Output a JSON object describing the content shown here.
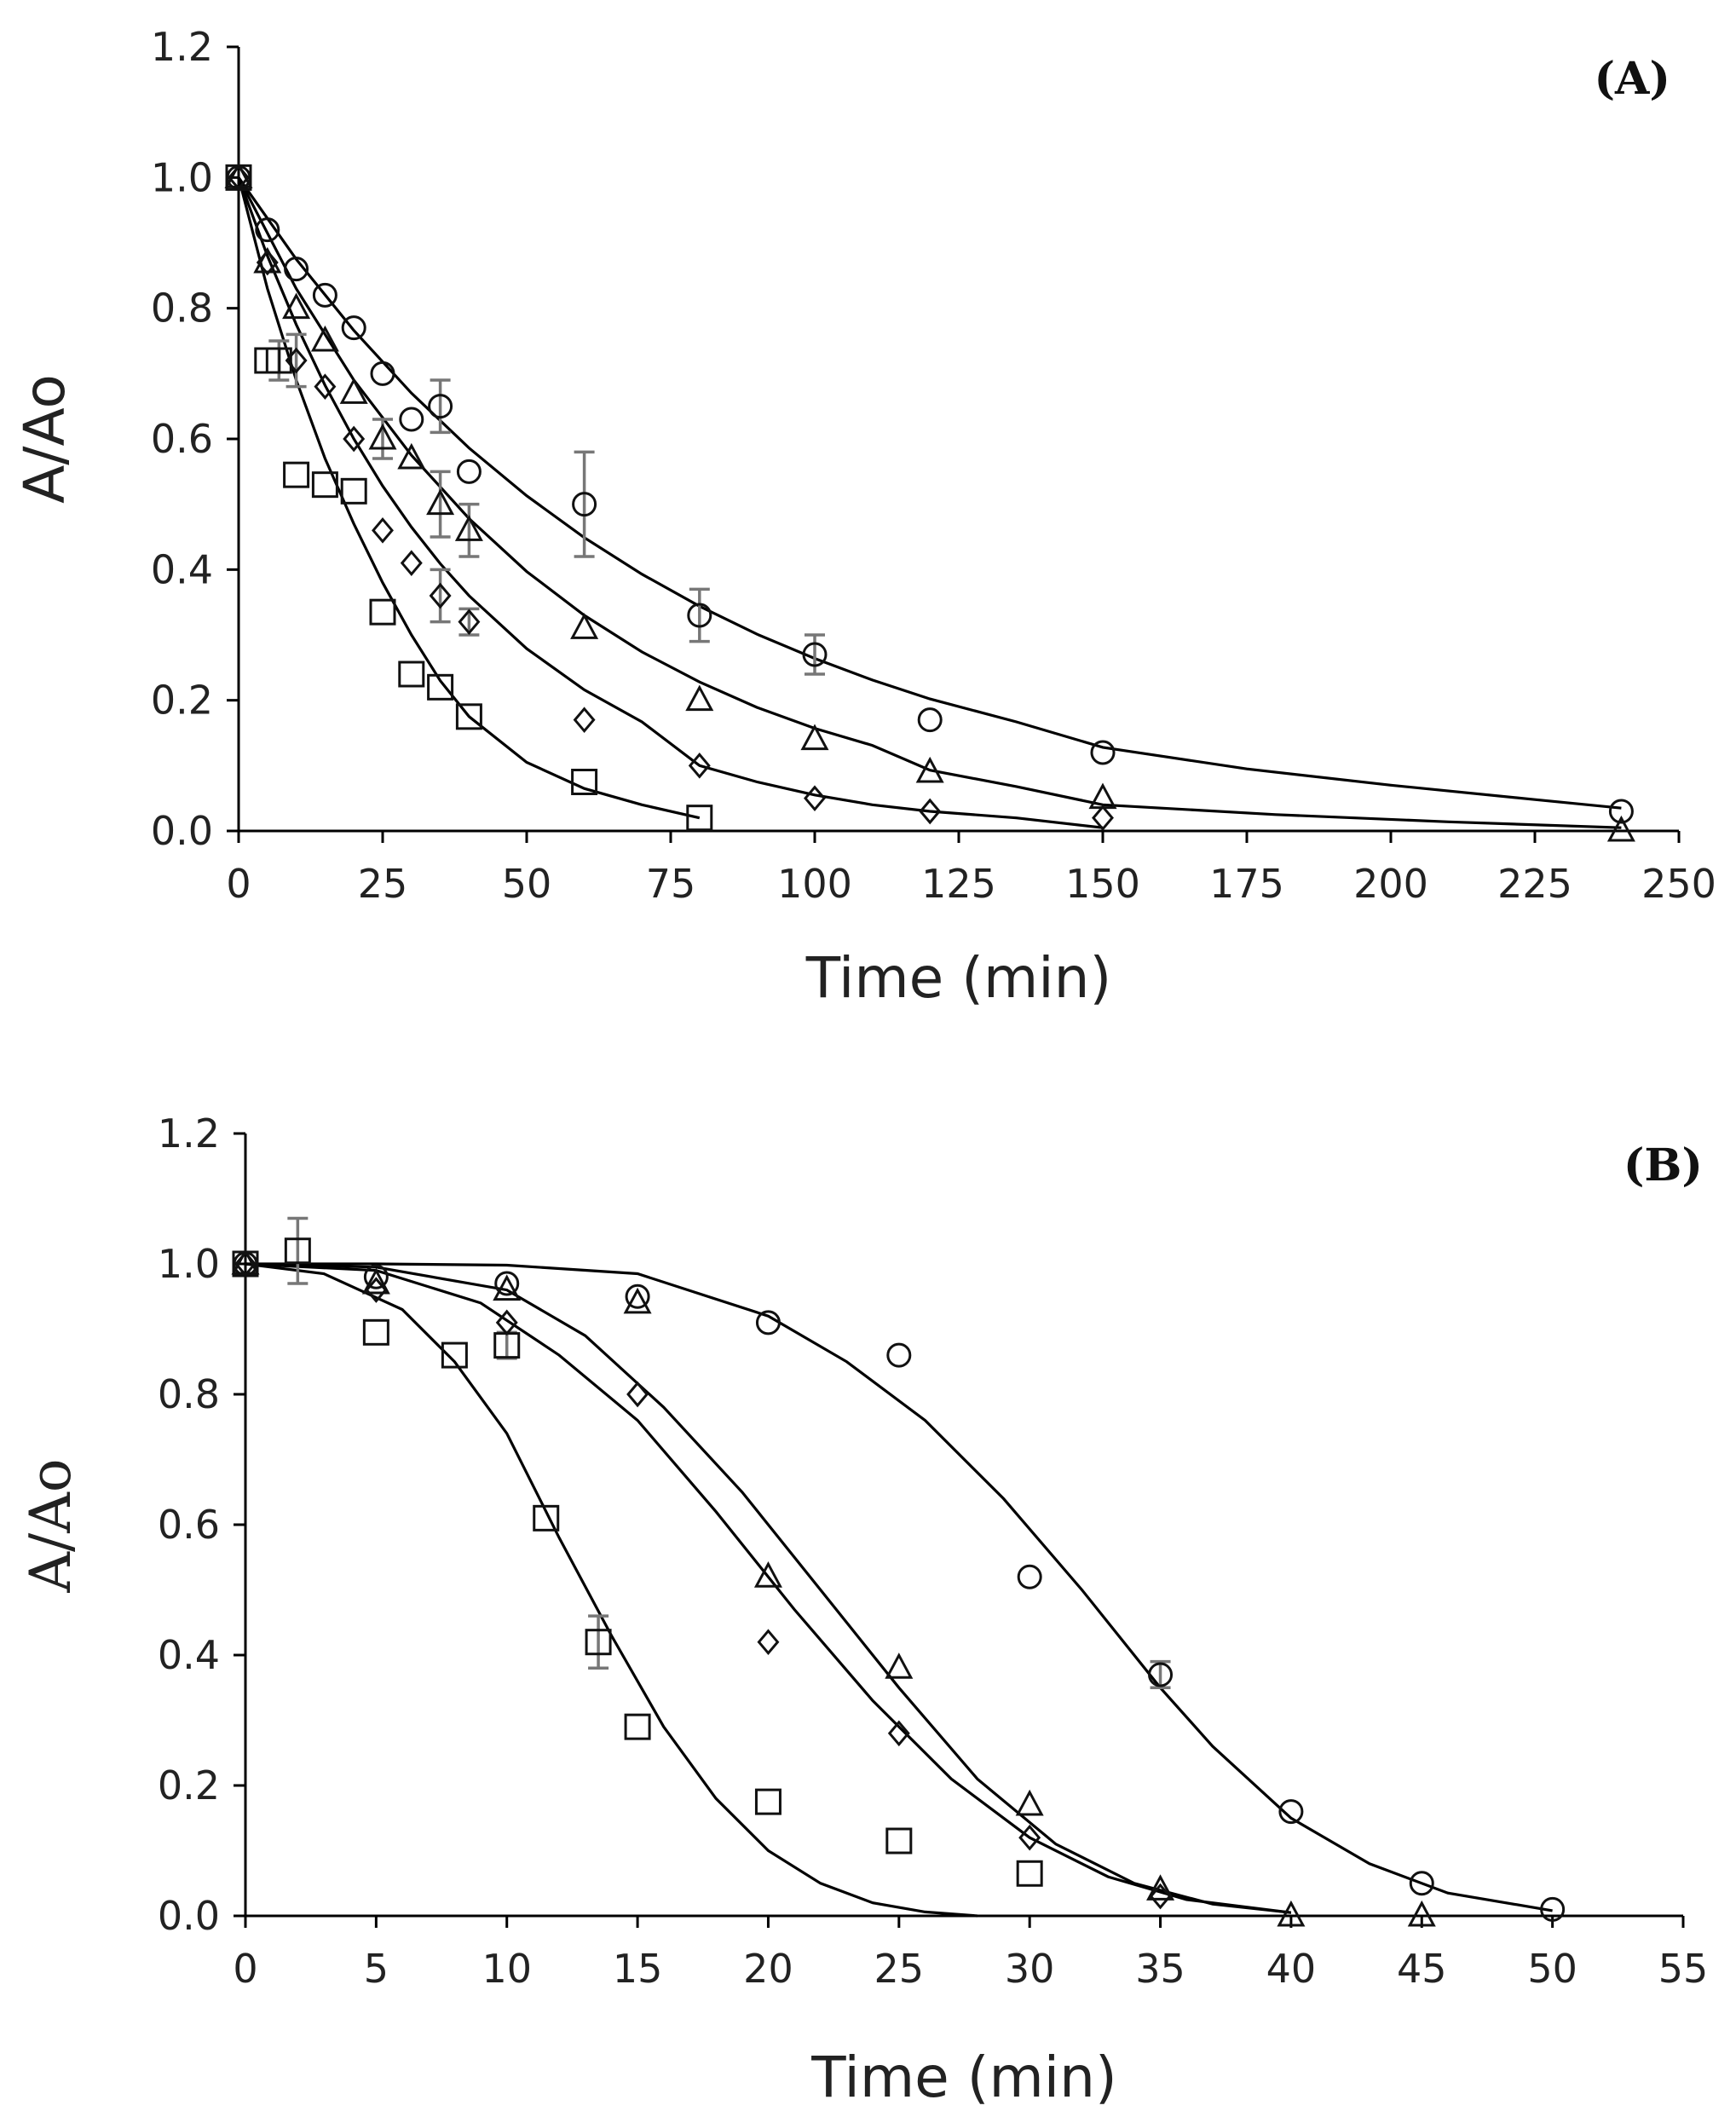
{
  "chart_data": [
    {
      "type": "scatter",
      "panel_label": "(A)",
      "xlabel": "Time (min)",
      "ylabel": "A/Ao",
      "xlim": [
        0,
        250
      ],
      "ylim": [
        0,
        1.2
      ],
      "x_ticks": [
        "0",
        "25",
        "50",
        "75",
        "100",
        "125",
        "150",
        "175",
        "200",
        "225",
        "250"
      ],
      "y_ticks": [
        "0.0",
        "0.2",
        "0.4",
        "0.6",
        "0.8",
        "1.0",
        "1.2"
      ],
      "grid": false,
      "series": [
        {
          "name": "circle",
          "marker": "circle",
          "x": [
            0,
            5,
            10,
            15,
            20,
            25,
            30,
            35,
            40,
            60,
            80,
            100,
            120,
            150,
            240
          ],
          "y": [
            1.0,
            0.92,
            0.86,
            0.82,
            0.77,
            0.7,
            0.63,
            0.65,
            0.55,
            0.5,
            0.33,
            0.27,
            0.17,
            0.12,
            0.03
          ],
          "err": [
            0,
            0,
            0,
            0,
            0,
            0,
            0,
            0.04,
            0,
            0.08,
            0.04,
            0.03,
            0,
            0,
            0
          ],
          "fit": [
            [
              0,
              1.0
            ],
            [
              10,
              0.875
            ],
            [
              20,
              0.766
            ],
            [
              30,
              0.67
            ],
            [
              40,
              0.586
            ],
            [
              50,
              0.513
            ],
            [
              60,
              0.449
            ],
            [
              70,
              0.393
            ],
            [
              80,
              0.344
            ],
            [
              90,
              0.301
            ],
            [
              100,
              0.264
            ],
            [
              110,
              0.231
            ],
            [
              120,
              0.202
            ],
            [
              135,
              0.167
            ],
            [
              150,
              0.128
            ],
            [
              175,
              0.095
            ],
            [
              200,
              0.07
            ],
            [
              225,
              0.048
            ],
            [
              240,
              0.035
            ]
          ]
        },
        {
          "name": "triangle",
          "marker": "triangle",
          "x": [
            0,
            5,
            10,
            15,
            20,
            25,
            30,
            35,
            40,
            60,
            80,
            100,
            120,
            150,
            240
          ],
          "y": [
            1.0,
            0.87,
            0.8,
            0.75,
            0.67,
            0.6,
            0.57,
            0.5,
            0.46,
            0.31,
            0.2,
            0.14,
            0.09,
            0.05,
            0.0
          ],
          "err": [
            0,
            0,
            0,
            0,
            0,
            0.03,
            0,
            0.05,
            0.04,
            0,
            0,
            0,
            0,
            0,
            0
          ],
          "fit": [
            [
              0,
              1.0
            ],
            [
              10,
              0.83
            ],
            [
              20,
              0.69
            ],
            [
              30,
              0.575
            ],
            [
              40,
              0.478
            ],
            [
              50,
              0.397
            ],
            [
              60,
              0.33
            ],
            [
              70,
              0.274
            ],
            [
              80,
              0.228
            ],
            [
              90,
              0.189
            ],
            [
              100,
              0.157
            ],
            [
              110,
              0.131
            ],
            [
              120,
              0.093
            ],
            [
              135,
              0.068
            ],
            [
              150,
              0.04
            ],
            [
              180,
              0.025
            ],
            [
              210,
              0.014
            ],
            [
              240,
              0.005
            ]
          ]
        },
        {
          "name": "diamond",
          "marker": "diamond",
          "x": [
            0,
            5,
            10,
            15,
            20,
            25,
            30,
            35,
            40,
            60,
            80,
            100,
            120,
            150
          ],
          "y": [
            1.0,
            0.87,
            0.72,
            0.68,
            0.6,
            0.46,
            0.41,
            0.36,
            0.32,
            0.17,
            0.1,
            0.05,
            0.03,
            0.02
          ],
          "err": [
            0,
            0,
            0.04,
            0,
            0,
            0,
            0,
            0.04,
            0.02,
            0,
            0,
            0,
            0,
            0
          ],
          "fit": [
            [
              0,
              1.0
            ],
            [
              5,
              0.88
            ],
            [
              10,
              0.775
            ],
            [
              15,
              0.682
            ],
            [
              20,
              0.6
            ],
            [
              25,
              0.528
            ],
            [
              30,
              0.465
            ],
            [
              35,
              0.409
            ],
            [
              40,
              0.36
            ],
            [
              50,
              0.279
            ],
            [
              60,
              0.216
            ],
            [
              70,
              0.167
            ],
            [
              80,
              0.1
            ],
            [
              90,
              0.075
            ],
            [
              100,
              0.055
            ],
            [
              110,
              0.04
            ],
            [
              120,
              0.03
            ],
            [
              135,
              0.02
            ],
            [
              150,
              0.005
            ]
          ]
        },
        {
          "name": "square",
          "marker": "square",
          "x": [
            0,
            5,
            7,
            10,
            15,
            20,
            25,
            30,
            35,
            40,
            60,
            80
          ],
          "y": [
            1.0,
            0.72,
            0.72,
            0.545,
            0.53,
            0.52,
            0.335,
            0.24,
            0.22,
            0.175,
            0.075,
            0.02
          ],
          "err": [
            0,
            0,
            0.03,
            0,
            0,
            0,
            0,
            0,
            0,
            0,
            0,
            0
          ],
          "fit": [
            [
              0,
              1.0
            ],
            [
              5,
              0.83
            ],
            [
              10,
              0.69
            ],
            [
              15,
              0.57
            ],
            [
              20,
              0.47
            ],
            [
              25,
              0.38
            ],
            [
              30,
              0.3
            ],
            [
              35,
              0.23
            ],
            [
              40,
              0.175
            ],
            [
              50,
              0.105
            ],
            [
              60,
              0.065
            ],
            [
              70,
              0.04
            ],
            [
              80,
              0.02
            ]
          ]
        }
      ]
    },
    {
      "type": "scatter",
      "panel_label": "(B)",
      "xlabel": "Time (min)",
      "ylabel": "A/Ao",
      "xlim": [
        0,
        55
      ],
      "ylim": [
        0,
        1.2
      ],
      "x_ticks": [
        "0",
        "5",
        "10",
        "15",
        "20",
        "25",
        "30",
        "35",
        "40",
        "45",
        "50",
        "55"
      ],
      "y_ticks": [
        "0.0",
        "0.2",
        "0.4",
        "0.6",
        "0.8",
        "1.0",
        "1.2"
      ],
      "grid": false,
      "series": [
        {
          "name": "circle",
          "marker": "circle",
          "x": [
            0,
            5,
            10,
            15,
            20,
            25,
            30,
            35,
            40,
            45,
            50
          ],
          "y": [
            1.0,
            0.98,
            0.97,
            0.95,
            0.91,
            0.86,
            0.52,
            0.37,
            0.16,
            0.05,
            0.01
          ],
          "err": [
            0,
            0,
            0,
            0,
            0,
            0,
            0,
            0.02,
            0,
            0,
            0
          ],
          "fit": [
            [
              0,
              1.0
            ],
            [
              5,
              1.0
            ],
            [
              10,
              0.998
            ],
            [
              15,
              0.985
            ],
            [
              20,
              0.92
            ],
            [
              23,
              0.85
            ],
            [
              26,
              0.76
            ],
            [
              29,
              0.64
            ],
            [
              32,
              0.5
            ],
            [
              35,
              0.35
            ],
            [
              37,
              0.26
            ],
            [
              40,
              0.15
            ],
            [
              43,
              0.08
            ],
            [
              46,
              0.035
            ],
            [
              50,
              0.008
            ]
          ]
        },
        {
          "name": "triangle",
          "marker": "triangle",
          "x": [
            0,
            5,
            10,
            15,
            20,
            25,
            30,
            35,
            40,
            45
          ],
          "y": [
            1.0,
            0.97,
            0.96,
            0.94,
            0.52,
            0.38,
            0.17,
            0.04,
            0.0,
            0.0
          ],
          "err": [
            0,
            0,
            0,
            0,
            0,
            0,
            0,
            0,
            0,
            0
          ],
          "fit": [
            [
              0,
              1.0
            ],
            [
              5,
              0.995
            ],
            [
              10,
              0.96
            ],
            [
              13,
              0.89
            ],
            [
              16,
              0.78
            ],
            [
              19,
              0.65
            ],
            [
              22,
              0.5
            ],
            [
              25,
              0.35
            ],
            [
              28,
              0.21
            ],
            [
              31,
              0.11
            ],
            [
              34,
              0.05
            ],
            [
              37,
              0.018
            ],
            [
              40,
              0.005
            ]
          ]
        },
        {
          "name": "diamond",
          "marker": "diamond",
          "x": [
            0,
            5,
            10,
            15,
            20,
            25,
            30,
            35
          ],
          "y": [
            1.0,
            0.96,
            0.91,
            0.8,
            0.42,
            0.28,
            0.12,
            0.03
          ],
          "err": [
            0,
            0,
            0,
            0,
            0,
            0,
            0,
            0
          ],
          "fit": [
            [
              0,
              1.0
            ],
            [
              5,
              0.99
            ],
            [
              9,
              0.94
            ],
            [
              12,
              0.86
            ],
            [
              15,
              0.76
            ],
            [
              18,
              0.62
            ],
            [
              21,
              0.47
            ],
            [
              24,
              0.33
            ],
            [
              27,
              0.21
            ],
            [
              30,
              0.12
            ],
            [
              33,
              0.06
            ],
            [
              36,
              0.025
            ],
            [
              40,
              0.005
            ]
          ]
        },
        {
          "name": "square",
          "marker": "square",
          "x": [
            0,
            2,
            5,
            8,
            10,
            11.5,
            13.5,
            15,
            20,
            25,
            30
          ],
          "y": [
            1.0,
            1.02,
            0.895,
            0.86,
            0.875,
            0.61,
            0.42,
            0.29,
            0.175,
            0.115,
            0.065
          ],
          "err": [
            0,
            0.05,
            0,
            0,
            0.02,
            0,
            0.04,
            0,
            0,
            0,
            0
          ],
          "fit": [
            [
              0,
              1.0
            ],
            [
              3,
              0.985
            ],
            [
              6,
              0.93
            ],
            [
              8,
              0.85
            ],
            [
              10,
              0.74
            ],
            [
              12,
              0.58
            ],
            [
              14,
              0.43
            ],
            [
              16,
              0.29
            ],
            [
              18,
              0.18
            ],
            [
              20,
              0.1
            ],
            [
              22,
              0.05
            ],
            [
              24,
              0.02
            ],
            [
              26,
              0.006
            ],
            [
              28,
              0.0
            ]
          ]
        }
      ]
    }
  ]
}
